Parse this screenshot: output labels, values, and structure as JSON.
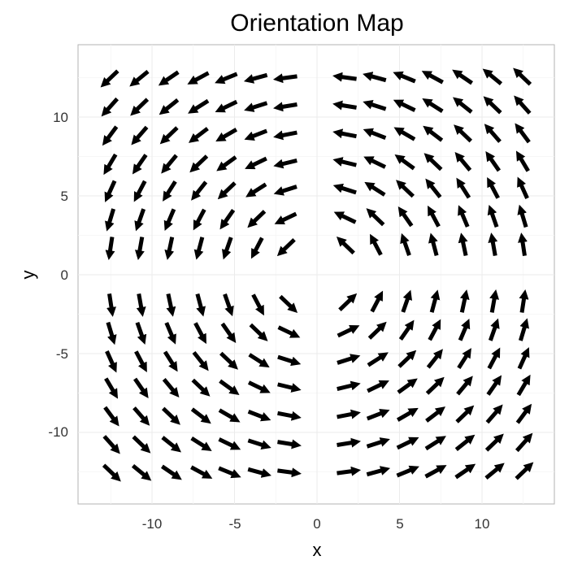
{
  "chart_data": {
    "type": "vector-field",
    "title": "Orientation Map",
    "xlabel": "x",
    "ylabel": "y",
    "xlim": [
      -14.5,
      14.3
    ],
    "ylim": [
      -14.5,
      14.3
    ],
    "x_ticks": [
      -10,
      -5,
      0,
      5,
      10
    ],
    "y_ticks": [
      -10,
      -5,
      0,
      5,
      10
    ],
    "x_tick_labels": [
      "-10",
      "-5",
      "0",
      "5",
      "10"
    ],
    "y_tick_labels": [
      "-10",
      "-5",
      "0",
      "5",
      "10"
    ],
    "grid": true,
    "grid_coords": [
      -12.5,
      -10.7,
      -8.9,
      -7.1,
      -5.4,
      -3.6,
      -1.8,
      1.8,
      3.6,
      5.4,
      7.1,
      8.9,
      10.7,
      12.5
    ],
    "arrow_length": 1.2,
    "angle_rule": "direction = atan2(y, x) + 90 degrees",
    "colors": {
      "arrow": "#000000",
      "panel_border": "#b3b3b3",
      "grid_major": "#ebebeb",
      "grid_minor": "#f5f5f5"
    }
  }
}
